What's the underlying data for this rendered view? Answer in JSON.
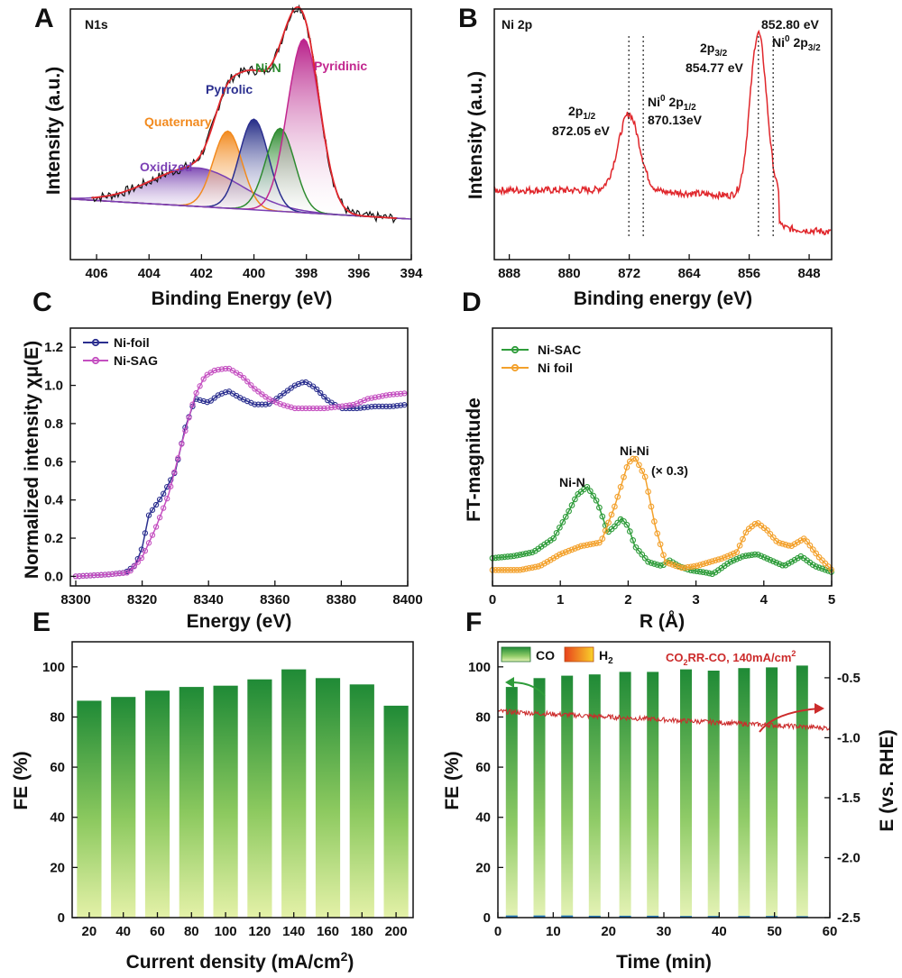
{
  "colors": {
    "xps_red": "#e0262b",
    "nifoil_blue": "#2b2f8f",
    "nisag_magenta": "#c44fc0",
    "nisac_green": "#2e9c3a",
    "nifoil_orange": "#f3a12c",
    "bar_dark": "#1f8a36",
    "bar_light": "#d7eb9a",
    "h2_orange": "#f39c12",
    "potential_red": "#cc2b2b",
    "oxidized": "#7b3fb4",
    "quaternary": "#f28a1e",
    "pyrrolic": "#2b2f8f",
    "nin": "#2e8b30",
    "pyridinic": "#c2278f"
  },
  "chart_data": [
    {
      "panel": "A",
      "type": "line",
      "title": "N1s",
      "xlabel": "Binding Energy (eV)",
      "ylabel": "Intensity (a.u.)",
      "xlim": [
        407,
        394
      ],
      "xticks": [
        406,
        404,
        402,
        400,
        398,
        396,
        394
      ],
      "components": [
        {
          "name": "Oxidized",
          "center": 402.2,
          "height": 0.2,
          "width": 1.7
        },
        {
          "name": "Quaternary",
          "center": 401.0,
          "height": 0.4,
          "width": 0.55
        },
        {
          "name": "Pyrrolic",
          "center": 400.0,
          "height": 0.47,
          "width": 0.55
        },
        {
          "name": "Ni-N",
          "center": 399.0,
          "height": 0.43,
          "width": 0.55
        },
        {
          "name": "Pyridinic",
          "center": 398.1,
          "height": 0.9,
          "width": 0.62
        }
      ]
    },
    {
      "panel": "B",
      "type": "line",
      "title": "Ni 2p",
      "xlabel": "Binding energy (eV)",
      "ylabel": "Intensity (a.u.)",
      "xlim": [
        890,
        845
      ],
      "xticks": [
        888,
        880,
        872,
        864,
        856,
        848
      ],
      "peaks": [
        {
          "label_a": "2p",
          "label_sub": "1/2",
          "label_b": "872.05 eV",
          "position": 872.05
        },
        {
          "label_a": "Ni",
          "label_sup": "0",
          "label_c": " 2p",
          "label_sub": "1/2",
          "label_b": "870.13eV",
          "position": 870.13
        },
        {
          "label_a": "2p",
          "label_sub": "3/2",
          "label_b": "854.77 eV",
          "position": 854.77
        },
        {
          "label_a": "852.80 eV",
          "label_b": "Ni",
          "label_sup": "0",
          "label_c": " 2p",
          "label_sub": "3/2",
          "position": 852.8
        }
      ]
    },
    {
      "panel": "C",
      "type": "line",
      "xlabel": "Energy (eV)",
      "ylabel": "Normalized intensity χμ(E)",
      "xlim": [
        8300,
        8400
      ],
      "ylim": [
        -0.05,
        1.3
      ],
      "xticks": [
        8300,
        8320,
        8340,
        8360,
        8380,
        8400
      ],
      "yticks": [
        0.0,
        0.2,
        0.4,
        0.6,
        0.8,
        1.0,
        1.2
      ],
      "series": [
        {
          "name": "Ni-foil",
          "points": [
            [
              8300,
              0
            ],
            [
              8310,
              0.01
            ],
            [
              8315,
              0.02
            ],
            [
              8318,
              0.06
            ],
            [
              8320,
              0.15
            ],
            [
              8322,
              0.32
            ],
            [
              8326,
              0.42
            ],
            [
              8330,
              0.55
            ],
            [
              8333,
              0.78
            ],
            [
              8336,
              0.93
            ],
            [
              8340,
              0.91
            ],
            [
              8343,
              0.95
            ],
            [
              8346,
              0.97
            ],
            [
              8350,
              0.93
            ],
            [
              8354,
              0.9
            ],
            [
              8358,
              0.9
            ],
            [
              8362,
              0.95
            ],
            [
              8366,
              1.0
            ],
            [
              8369,
              1.02
            ],
            [
              8372,
              0.99
            ],
            [
              8376,
              0.92
            ],
            [
              8380,
              0.88
            ],
            [
              8385,
              0.88
            ],
            [
              8390,
              0.89
            ],
            [
              8395,
              0.89
            ],
            [
              8400,
              0.9
            ]
          ]
        },
        {
          "name": "Ni-SAG",
          "points": [
            [
              8300,
              0
            ],
            [
              8310,
              0.01
            ],
            [
              8316,
              0.02
            ],
            [
              8320,
              0.1
            ],
            [
              8324,
              0.25
            ],
            [
              8328,
              0.43
            ],
            [
              8332,
              0.7
            ],
            [
              8336,
              0.95
            ],
            [
              8339,
              1.05
            ],
            [
              8342,
              1.08
            ],
            [
              8346,
              1.09
            ],
            [
              8350,
              1.05
            ],
            [
              8354,
              0.98
            ],
            [
              8358,
              0.93
            ],
            [
              8362,
              0.9
            ],
            [
              8366,
              0.88
            ],
            [
              8370,
              0.88
            ],
            [
              8375,
              0.88
            ],
            [
              8380,
              0.89
            ],
            [
              8384,
              0.9
            ],
            [
              8388,
              0.93
            ],
            [
              8394,
              0.95
            ],
            [
              8400,
              0.96
            ]
          ]
        }
      ]
    },
    {
      "panel": "D",
      "type": "line",
      "xlabel": "R (Å)",
      "ylabel": "FT-magnitude",
      "xlim": [
        0,
        5
      ],
      "ylim": [
        0,
        1.3
      ],
      "xticks": [
        0,
        1,
        2,
        3,
        4,
        5
      ],
      "annotations": {
        "ni_n": "Ni-N",
        "ni_ni": "Ni-Ni",
        "scale": "(× 0.3)"
      },
      "series": [
        {
          "name": "Ni-SAC",
          "points": [
            [
              0,
              0.14
            ],
            [
              0.3,
              0.15
            ],
            [
              0.6,
              0.17
            ],
            [
              0.9,
              0.24
            ],
            [
              1.1,
              0.36
            ],
            [
              1.25,
              0.46
            ],
            [
              1.4,
              0.5
            ],
            [
              1.55,
              0.42
            ],
            [
              1.7,
              0.27
            ],
            [
              1.8,
              0.3
            ],
            [
              1.9,
              0.34
            ],
            [
              2.0,
              0.3
            ],
            [
              2.1,
              0.2
            ],
            [
              2.3,
              0.12
            ],
            [
              2.5,
              0.1
            ],
            [
              2.6,
              0.13
            ],
            [
              2.75,
              0.1
            ],
            [
              2.9,
              0.08
            ],
            [
              3.1,
              0.07
            ],
            [
              3.25,
              0.06
            ],
            [
              3.5,
              0.12
            ],
            [
              3.7,
              0.15
            ],
            [
              3.9,
              0.16
            ],
            [
              4.1,
              0.13
            ],
            [
              4.3,
              0.1
            ],
            [
              4.55,
              0.15
            ],
            [
              4.75,
              0.1
            ],
            [
              5.0,
              0.07
            ]
          ]
        },
        {
          "name": "Ni foil",
          "points": [
            [
              0,
              0.08
            ],
            [
              0.4,
              0.08
            ],
            [
              0.7,
              0.1
            ],
            [
              1.0,
              0.16
            ],
            [
              1.3,
              0.2
            ],
            [
              1.6,
              0.22
            ],
            [
              1.8,
              0.4
            ],
            [
              2.0,
              0.62
            ],
            [
              2.1,
              0.65
            ],
            [
              2.25,
              0.55
            ],
            [
              2.4,
              0.3
            ],
            [
              2.55,
              0.12
            ],
            [
              2.8,
              0.09
            ],
            [
              3.0,
              0.1
            ],
            [
              3.2,
              0.12
            ],
            [
              3.4,
              0.14
            ],
            [
              3.6,
              0.17
            ],
            [
              3.75,
              0.28
            ],
            [
              3.9,
              0.32
            ],
            [
              4.05,
              0.28
            ],
            [
              4.2,
              0.22
            ],
            [
              4.4,
              0.2
            ],
            [
              4.6,
              0.24
            ],
            [
              4.8,
              0.15
            ],
            [
              5.0,
              0.08
            ]
          ]
        }
      ]
    },
    {
      "panel": "E",
      "type": "bar",
      "xlabel": "Current density (mA/cm",
      "xlabel_sup": "2",
      "xlabel_close": ")",
      "ylabel": "FE (%)",
      "ylim": [
        0,
        110
      ],
      "yticks": [
        0,
        20,
        40,
        60,
        80,
        100
      ],
      "categories": [
        "20",
        "40",
        "60",
        "80",
        "100",
        "120",
        "140",
        "160",
        "180",
        "200"
      ],
      "values": [
        86.5,
        88,
        90.5,
        92,
        92.5,
        95,
        99,
        95.5,
        93,
        84.5
      ]
    },
    {
      "panel": "F",
      "type": "bar",
      "xlabel": "Time (min)",
      "ylabel": "FE (%)",
      "y2label": "E (vs. RHE)",
      "xlim": [
        0,
        60
      ],
      "ylim": [
        0,
        110
      ],
      "y2lim": [
        -2.5,
        -0.2
      ],
      "xticks": [
        0,
        10,
        20,
        30,
        40,
        50,
        60
      ],
      "yticks": [
        0,
        20,
        40,
        60,
        80,
        100
      ],
      "y2ticks": [
        -2.5,
        -2.0,
        -1.5,
        -1.0,
        -0.5
      ],
      "y2tick_labels": [
        "-2.5",
        "-2.0",
        "-1.5",
        "-1.0",
        "-0.5"
      ],
      "legend": {
        "co": "CO",
        "h2": "H",
        "h2_sub": "2"
      },
      "annotation": {
        "p1": "CO",
        "p1_sub": "2",
        "p2": "RR-CO, 140mA/cm",
        "p2_sup": "2"
      },
      "series": [
        {
          "name": "CO",
          "x": [
            2.5,
            7.5,
            12.5,
            17.5,
            23,
            28,
            34,
            39,
            44.5,
            49.5,
            55
          ],
          "values": [
            92,
            95.5,
            96.5,
            97,
            98,
            98,
            99,
            98.5,
            99.5,
            99.8,
            100.5
          ]
        },
        {
          "name": "H2",
          "x": [
            2.5,
            7.5,
            12.5,
            17.5,
            23,
            28,
            34,
            39,
            44.5,
            49.5,
            55
          ],
          "values": [
            0.5,
            0.5,
            0.5,
            0.4,
            0.4,
            0.4,
            0.3,
            0.3,
            0.3,
            0.3,
            0.2
          ]
        },
        {
          "name": "E",
          "start": -0.78,
          "end": -0.92
        }
      ]
    }
  ]
}
